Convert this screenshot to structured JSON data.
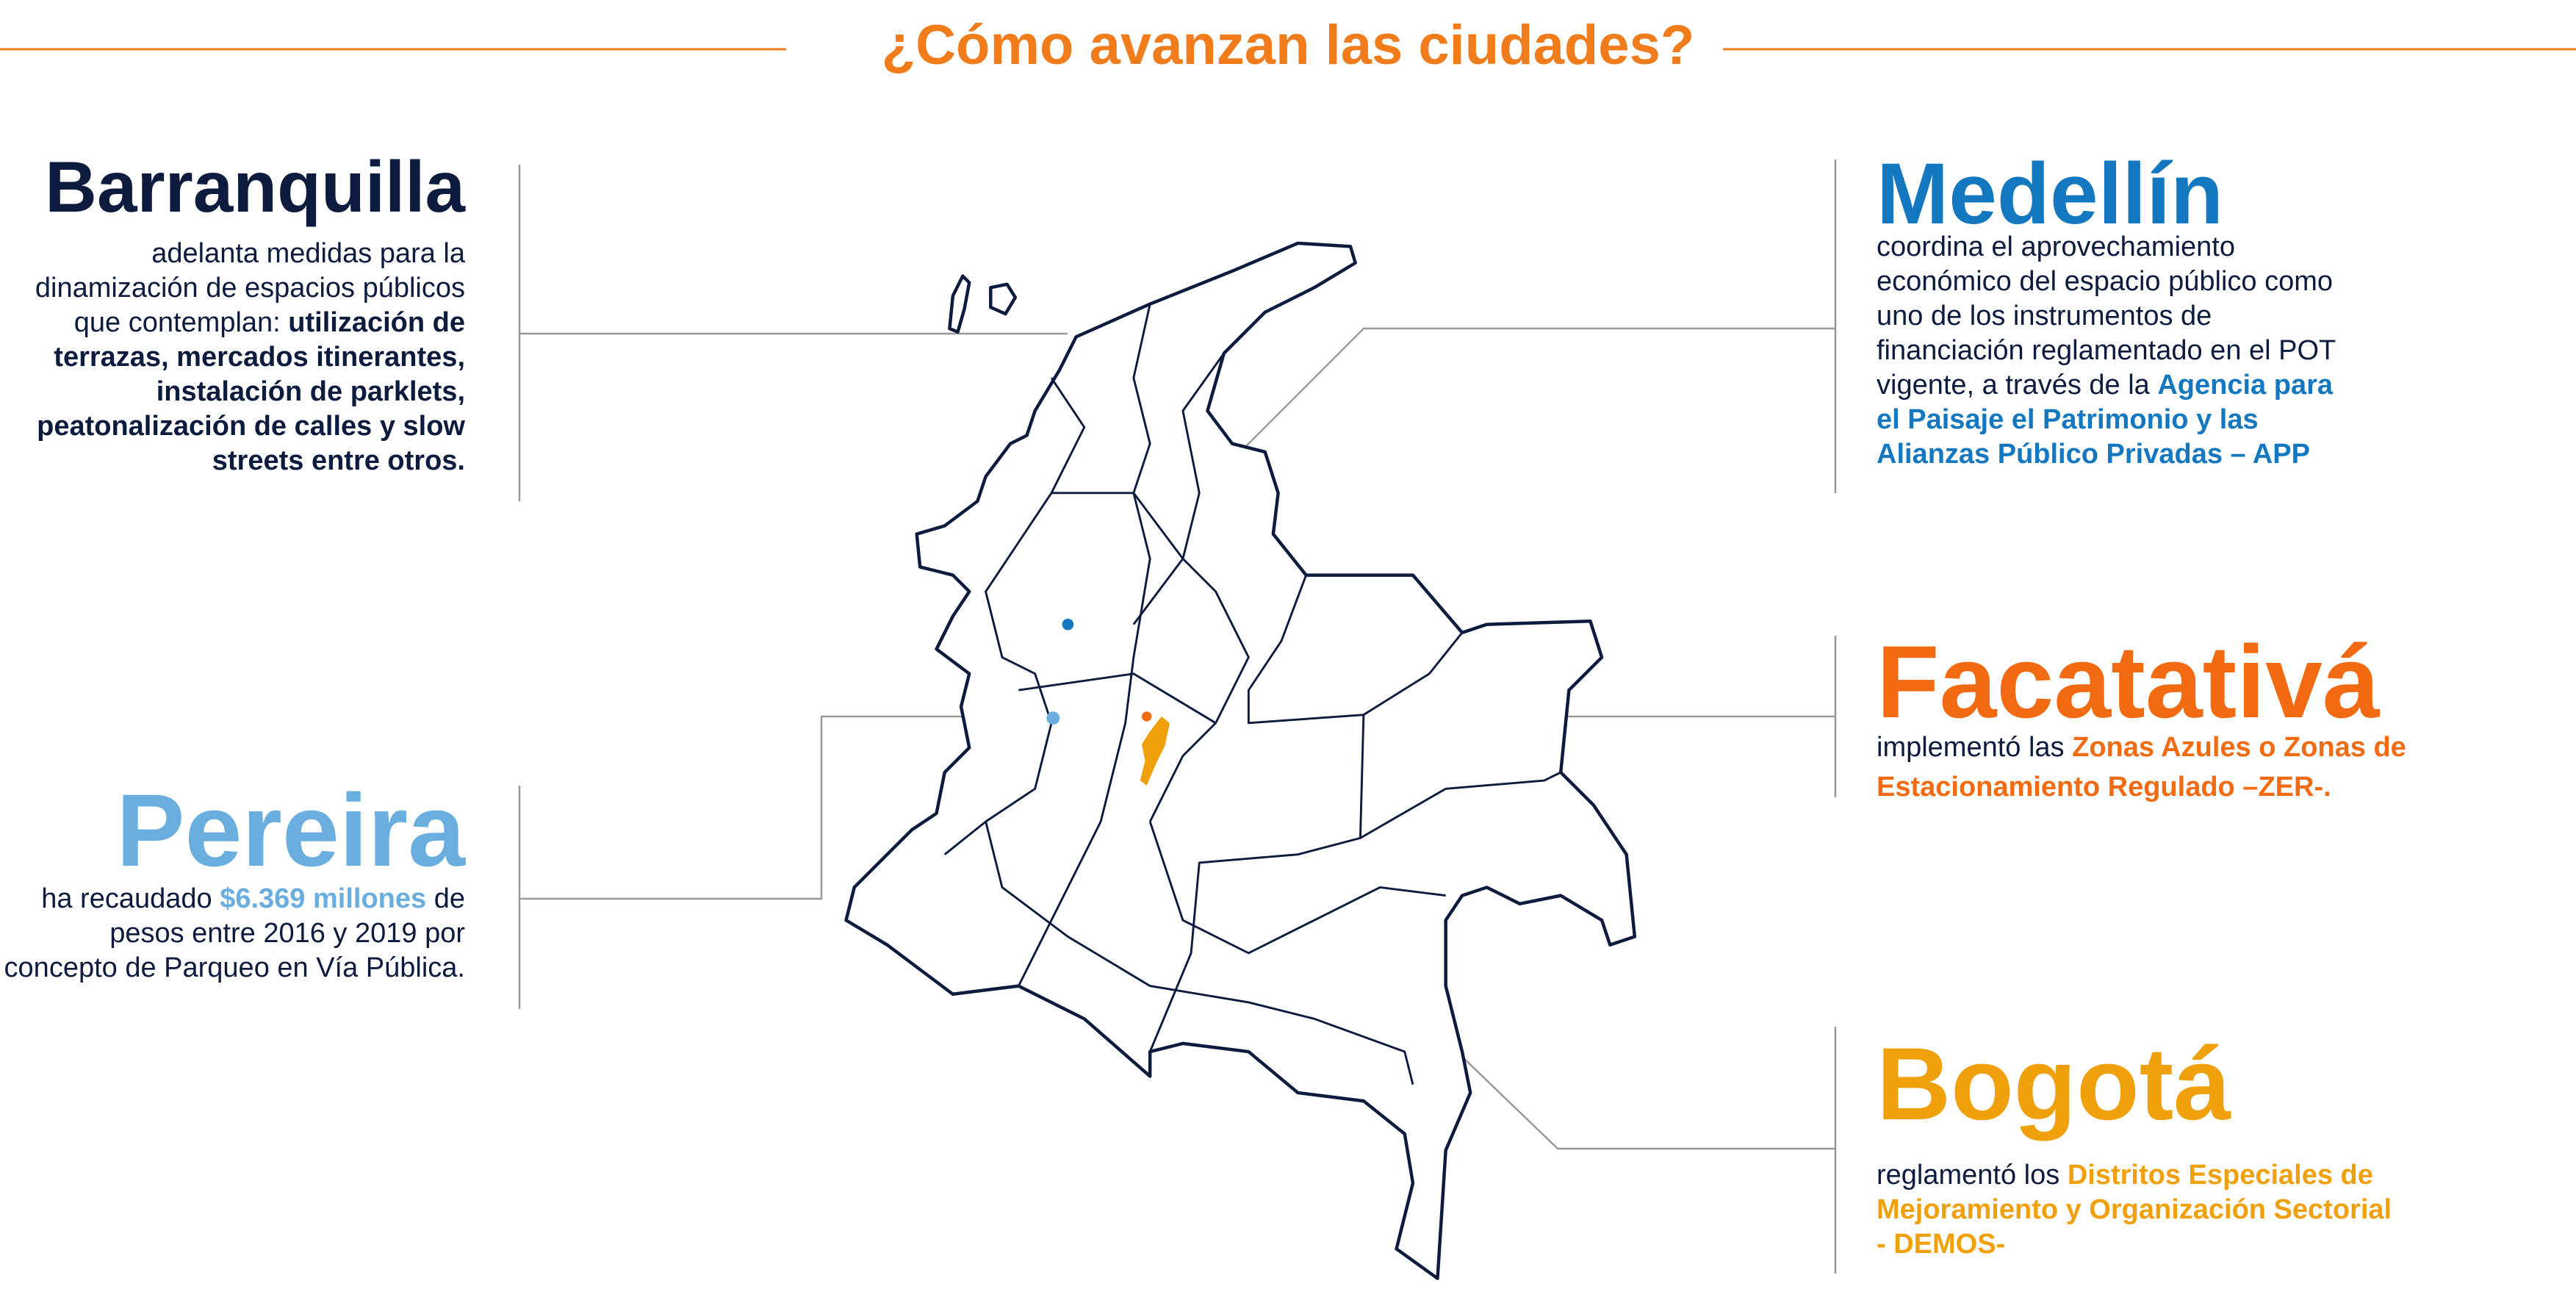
{
  "header": {
    "title": "¿Cómo avanzan las ciudades?"
  },
  "cities": [
    {
      "name": "Barranquilla",
      "color": "#0d1b3e",
      "text": "adelanta medidas para la dinamización de espacios públicos que contemplan:",
      "highlight": "utilización de terrazas, mercados itinerantes, instalación de parklets, peatonalización de calles y slow streets entre otros."
    },
    {
      "name": "Medellín",
      "color": "#1478c0",
      "text": "coordina el aprovechamiento económico del espacio público como uno de los instrumentos de financiación reglamentado en el POT vigente, a través de la",
      "highlight": "Agencia para el Paisaje el Patrimonio y las Alianzas Público Privadas – APP"
    },
    {
      "name": "Facatativá",
      "color": "#f26b12",
      "text": "implementó las",
      "highlight": "Zonas Azules o Zonas de Estacionamiento Regulado –ZER-."
    },
    {
      "name": "Pereira",
      "color": "#6aaee0",
      "text": "ha recaudado",
      "highlight": "$6.369 millones",
      "text_after": "de pesos entre 2016 y 2019 por concepto de Parqueo en Vía Pública."
    },
    {
      "name": "Bogotá",
      "color": "#f0a00a",
      "text": "reglamentó los",
      "highlight": "Distritos Especiales de Mejoramiento y Organización Sectorial - DEMOS-"
    }
  ]
}
